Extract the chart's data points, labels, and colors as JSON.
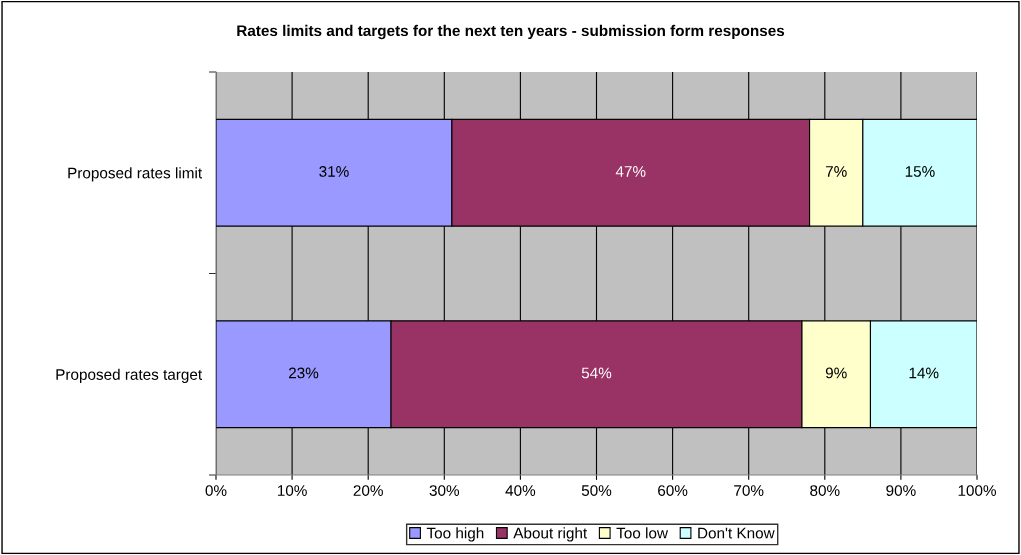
{
  "chart_data": {
    "type": "bar",
    "orientation": "horizontal",
    "stacked": true,
    "title": "Rates limits and targets for the next ten years - submission form responses",
    "categories": [
      "Proposed rates limit",
      "Proposed rates target"
    ],
    "series": [
      {
        "name": "Too high",
        "color": "#9999ff",
        "values": [
          31,
          23
        ],
        "value_labels": [
          "31%",
          "23%"
        ]
      },
      {
        "name": "About right",
        "color": "#993366",
        "values": [
          47,
          54
        ],
        "value_labels": [
          "47%",
          "54%"
        ]
      },
      {
        "name": "Too low",
        "color": "#ffffcc",
        "values": [
          7,
          9
        ],
        "value_labels": [
          "7%",
          "9%"
        ]
      },
      {
        "name": "Don't Know",
        "color": "#ccffff",
        "values": [
          15,
          14
        ],
        "value_labels": [
          "15%",
          "14%"
        ]
      }
    ],
    "xlim": [
      0,
      100
    ],
    "xticks": [
      {
        "value": 0,
        "label": "0%"
      },
      {
        "value": 10,
        "label": "10%"
      },
      {
        "value": 20,
        "label": "20%"
      },
      {
        "value": 30,
        "label": "30%"
      },
      {
        "value": 40,
        "label": "40%"
      },
      {
        "value": 50,
        "label": "50%"
      },
      {
        "value": 60,
        "label": "60%"
      },
      {
        "value": 70,
        "label": "70%"
      },
      {
        "value": 80,
        "label": "80%"
      },
      {
        "value": 90,
        "label": "90%"
      },
      {
        "value": 100,
        "label": "100%"
      }
    ],
    "grid": "x",
    "legend": "bottom"
  }
}
